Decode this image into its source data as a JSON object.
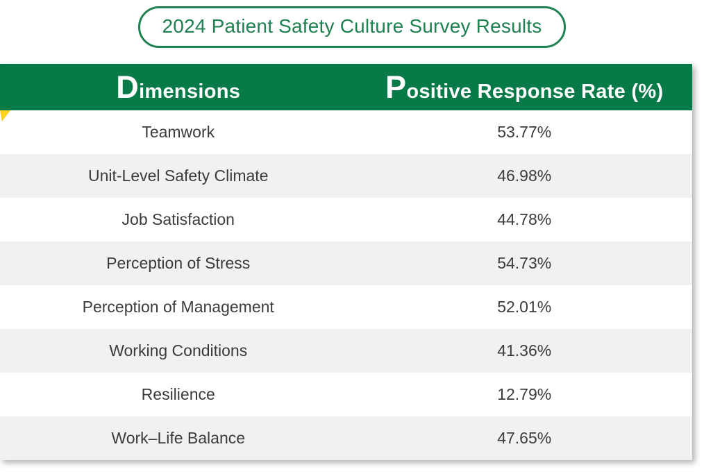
{
  "title": "2024 Patient Safety Culture Survey Results",
  "colors": {
    "header_green": "#077a47",
    "title_green": "#1f8150",
    "alt_row_gray": "#f1f1f1",
    "row_text_gray": "#3b3b3b",
    "corner_marker_yellow": "#ffd21f"
  },
  "table": {
    "columns": [
      "Dimensions",
      "Positive Response Rate (%)"
    ],
    "rows": [
      {
        "dimension": "Teamwork",
        "rate": "53.77%"
      },
      {
        "dimension": "Unit-Level Safety Climate",
        "rate": "46.98%"
      },
      {
        "dimension": "Job Satisfaction",
        "rate": "44.78%"
      },
      {
        "dimension": "Perception of Stress",
        "rate": "54.73%"
      },
      {
        "dimension": "Perception of Management",
        "rate": "52.01%"
      },
      {
        "dimension": "Working Conditions",
        "rate": "41.36%"
      },
      {
        "dimension": "Resilience",
        "rate": "12.79%"
      },
      {
        "dimension": "Work–Life Balance",
        "rate": "47.65%"
      }
    ]
  },
  "chart_data": {
    "type": "table",
    "title": "2024 Patient Safety Culture Survey Results",
    "columns": [
      "Dimensions",
      "Positive Response Rate (%)"
    ],
    "categories": [
      "Teamwork",
      "Unit-Level Safety Climate",
      "Job Satisfaction",
      "Perception of Stress",
      "Perception of Management",
      "Working Conditions",
      "Resilience",
      "Work–Life Balance"
    ],
    "values": [
      53.77,
      46.98,
      44.78,
      54.73,
      52.01,
      41.36,
      12.79,
      47.65
    ],
    "value_unit": "%"
  }
}
